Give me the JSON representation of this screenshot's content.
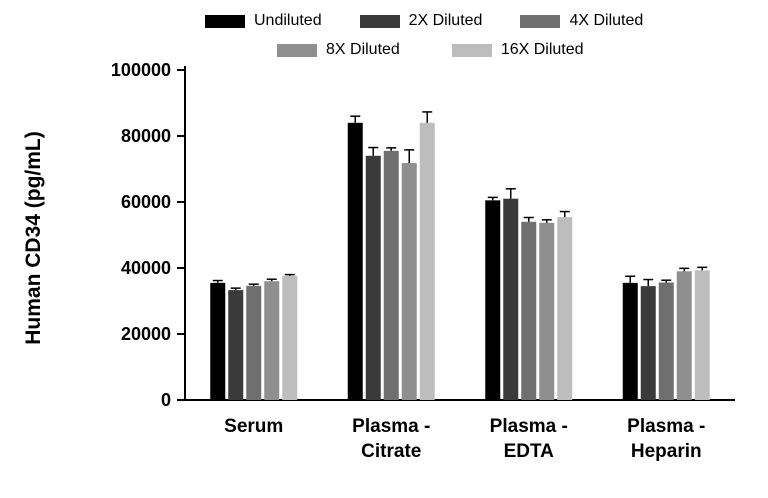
{
  "chart_data": {
    "type": "bar",
    "title": "",
    "xlabel": "",
    "ylabel": "Human CD34 (pg/mL)",
    "ylim": [
      0,
      100000
    ],
    "ytick_step": 20000,
    "grid": false,
    "legend_position": "top",
    "error_bars": "upper, T-cap, black",
    "categories": [
      "Serum",
      "Plasma - Citrate",
      "Plasma - EDTA",
      "Plasma - Heparin"
    ],
    "category_label_lines": [
      [
        "Serum"
      ],
      [
        "Plasma -",
        "Citrate"
      ],
      [
        "Plasma -",
        "EDTA"
      ],
      [
        "Plasma -",
        "Heparin"
      ]
    ],
    "series": [
      {
        "name": "Undiluted",
        "color": "#000000",
        "values": [
          35500,
          84000,
          60500,
          35500
        ],
        "errors": [
          700,
          2000,
          900,
          2000
        ]
      },
      {
        "name": "2X Diluted",
        "color": "#3a3a3a",
        "values": [
          33300,
          74000,
          61000,
          34500
        ],
        "errors": [
          600,
          2500,
          3000,
          2000
        ]
      },
      {
        "name": "4X Diluted",
        "color": "#6f6f6f",
        "values": [
          34600,
          75500,
          54000,
          35600
        ],
        "errors": [
          500,
          900,
          1300,
          700
        ]
      },
      {
        "name": "8X Diluted",
        "color": "#8f8f8f",
        "values": [
          36000,
          71800,
          53700,
          39000
        ],
        "errors": [
          600,
          4000,
          900,
          900
        ]
      },
      {
        "name": "16X Diluted",
        "color": "#bdbdbd",
        "values": [
          37600,
          84000,
          55400,
          39300
        ],
        "errors": [
          400,
          3300,
          1700,
          900
        ]
      }
    ],
    "legend_rows": [
      [
        0,
        1,
        2
      ],
      [
        3,
        4
      ]
    ]
  }
}
